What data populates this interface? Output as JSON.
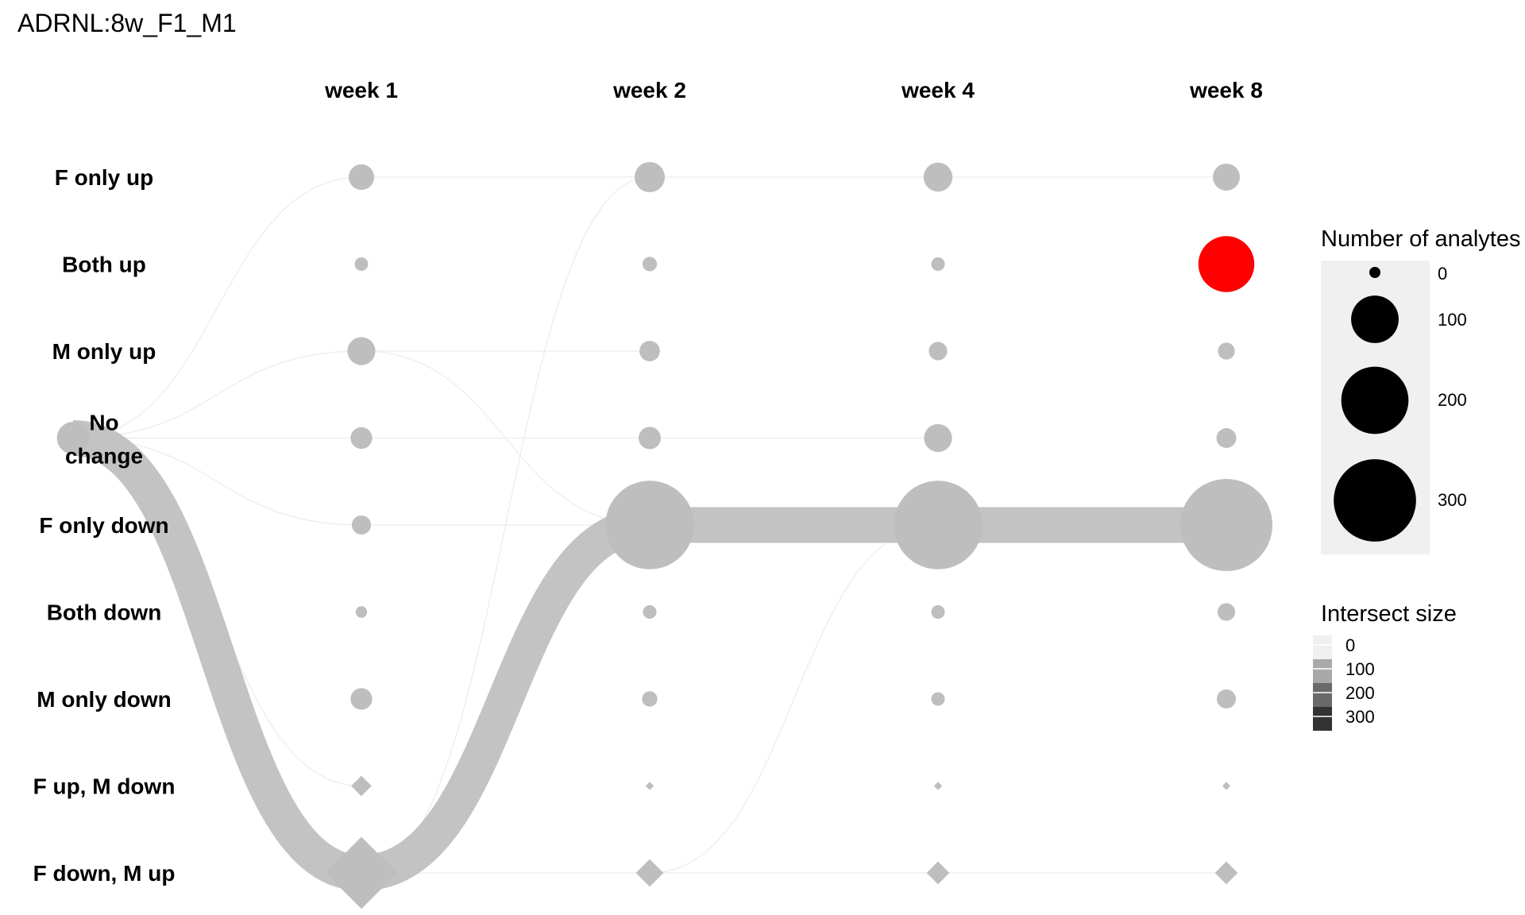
{
  "chart_data": {
    "type": "alluvial-dot",
    "title": "ADRNL:8w_F1_M1",
    "columns": [
      "week 1",
      "week 2",
      "week 4",
      "week 8"
    ],
    "rows": [
      "F only up",
      "Both up",
      "M only up",
      "No change",
      "F only down",
      "Both down",
      "M only down",
      "F up, M down",
      "F down, M up"
    ],
    "row_shapes": [
      "circle",
      "circle",
      "circle",
      "circle",
      "circle",
      "circle",
      "circle",
      "diamond",
      "diamond"
    ],
    "origin_state": "No change",
    "origin_size": 40,
    "node_sizes": {
      "week 1": [
        25,
        7,
        30,
        18,
        14,
        5,
        18,
        12,
        150
      ],
      "week 2": [
        35,
        8,
        16,
        19,
        300,
        7,
        9,
        1,
        22
      ],
      "week 4": [
        32,
        7,
        13,
        30,
        300,
        7,
        7,
        1,
        15
      ],
      "week 8": [
        28,
        120,
        11,
        15,
        325,
        12,
        14,
        1,
        15
      ]
    },
    "highlight": {
      "column": "week 8",
      "row": "Both up",
      "color": "#ff0000"
    },
    "node_color": "#bebebe",
    "flows": [
      {
        "from": [
          "origin",
          "No change"
        ],
        "to": [
          "week 1",
          "F down, M up"
        ],
        "size": 150
      },
      {
        "from": [
          "week 1",
          "F down, M up"
        ],
        "to": [
          "week 2",
          "F only down"
        ],
        "size": 150
      },
      {
        "from": [
          "week 2",
          "F only down"
        ],
        "to": [
          "week 4",
          "F only down"
        ],
        "size": 150
      },
      {
        "from": [
          "week 4",
          "F only down"
        ],
        "to": [
          "week 8",
          "F only down"
        ],
        "size": 150
      },
      {
        "from": [
          "origin",
          "No change"
        ],
        "to": [
          "week 1",
          "F only up"
        ],
        "size": 3
      },
      {
        "from": [
          "origin",
          "No change"
        ],
        "to": [
          "week 1",
          "M only up"
        ],
        "size": 3
      },
      {
        "from": [
          "origin",
          "No change"
        ],
        "to": [
          "week 1",
          "No change"
        ],
        "size": 2
      },
      {
        "from": [
          "origin",
          "No change"
        ],
        "to": [
          "week 1",
          "F only down"
        ],
        "size": 1
      },
      {
        "from": [
          "origin",
          "No change"
        ],
        "to": [
          "week 1",
          "F up, M down"
        ],
        "size": 1
      },
      {
        "from": [
          "week 1",
          "F only up"
        ],
        "to": [
          "week 2",
          "F only up"
        ],
        "size": 2
      },
      {
        "from": [
          "week 2",
          "F only up"
        ],
        "to": [
          "week 4",
          "F only up"
        ],
        "size": 4
      },
      {
        "from": [
          "week 4",
          "F only up"
        ],
        "to": [
          "week 8",
          "F only up"
        ],
        "size": 3
      },
      {
        "from": [
          "week 1",
          "M only up"
        ],
        "to": [
          "week 2",
          "M only up"
        ],
        "size": 2
      },
      {
        "from": [
          "week 1",
          "M only up"
        ],
        "to": [
          "week 2",
          "F only down"
        ],
        "size": 1
      },
      {
        "from": [
          "week 1",
          "No change"
        ],
        "to": [
          "week 2",
          "No change"
        ],
        "size": 1
      },
      {
        "from": [
          "week 2",
          "No change"
        ],
        "to": [
          "week 4",
          "No change"
        ],
        "size": 1
      },
      {
        "from": [
          "week 1",
          "F down, M up"
        ],
        "to": [
          "week 2",
          "F only up"
        ],
        "size": 1
      },
      {
        "from": [
          "week 1",
          "F down, M up"
        ],
        "to": [
          "week 2",
          "F down, M up"
        ],
        "size": 3
      },
      {
        "from": [
          "week 2",
          "F down, M up"
        ],
        "to": [
          "week 4",
          "F down, M up"
        ],
        "size": 2
      },
      {
        "from": [
          "week 4",
          "F down, M up"
        ],
        "to": [
          "week 8",
          "F down, M up"
        ],
        "size": 2
      },
      {
        "from": [
          "week 2",
          "F down, M up"
        ],
        "to": [
          "week 4",
          "F only down"
        ],
        "size": 1
      },
      {
        "from": [
          "week 1",
          "F only down"
        ],
        "to": [
          "week 2",
          "F only down"
        ],
        "size": 1
      }
    ],
    "legend_analytes": {
      "title": "Number of analytes",
      "values": [
        0,
        100,
        200,
        300
      ],
      "labels": [
        "0",
        "100",
        "200",
        "300"
      ],
      "color": "#000000",
      "background": "#f0f0f0"
    },
    "legend_intersect": {
      "title": "Intersect size",
      "values": [
        0,
        100,
        200,
        300
      ],
      "labels": [
        "0",
        "100",
        "200",
        "300"
      ],
      "colors": [
        "#f0f0f0",
        "#a9a9a9",
        "#6a6a6a",
        "#333333"
      ]
    }
  }
}
